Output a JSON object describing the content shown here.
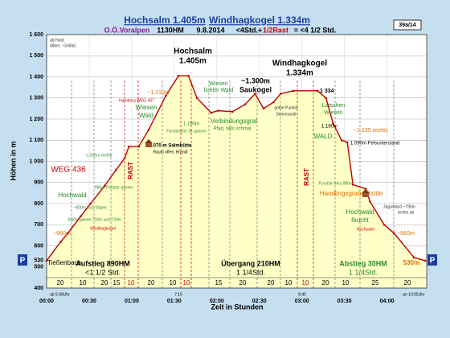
{
  "chart_data": {
    "type": "elevation-profile",
    "title_parts": [
      "Hochsalm 1.405m",
      "Windhagkogel 1.334m"
    ],
    "subtitle_parts": [
      {
        "text": "O.Ö.Voralpen",
        "color": "#8b1a8b"
      },
      {
        "text": "1130HM",
        "color": "#000000"
      },
      {
        "text": "9.8.2014",
        "color": "#000000"
      },
      {
        "text": "<4Std.+",
        "color": "#000000"
      },
      {
        "text": "1/2Rast",
        "color": "#d00000"
      },
      {
        "text": "= <4 1/2 Std.",
        "color": "#000000"
      }
    ],
    "tag": "39a/14",
    "xlabel": "Zeit in Stunden",
    "ylabel": "Höhen in m",
    "x": [
      0,
      10,
      15,
      24,
      31,
      41,
      49,
      55,
      58,
      65,
      72,
      84,
      93,
      100,
      106,
      116,
      121,
      131,
      140,
      147,
      153,
      160,
      165,
      174,
      191,
      197,
      202,
      208,
      212,
      216,
      225,
      228,
      238,
      245,
      259,
      267
    ],
    "values": [
      530,
      620,
      660,
      740,
      800,
      885,
      960,
      1015,
      1070,
      1070,
      1150,
      1310,
      1405,
      1405,
      1300,
      1230,
      1240,
      1235,
      1270,
      1320,
      1250,
      1280,
      1320,
      1334,
      1334,
      1300,
      1180,
      1100,
      1090,
      890,
      870,
      810,
      700,
      660,
      545,
      530
    ],
    "color": "#c00000",
    "fill": "#ffffc8",
    "xlim": [
      0,
      268
    ],
    "ylim": [
      400,
      1600
    ],
    "xticks": [
      {
        "value": 0,
        "label": "00:00"
      },
      {
        "value": 30,
        "label": "00:30"
      },
      {
        "value": 60,
        "label": "01:00"
      },
      {
        "value": 90,
        "label": "01:30"
      },
      {
        "value": 120,
        "label": "02:00"
      },
      {
        "value": 150,
        "label": "02:30"
      },
      {
        "value": 180,
        "label": "03:00"
      },
      {
        "value": 210,
        "label": "03:30"
      },
      {
        "value": 240,
        "label": "04:00"
      }
    ],
    "yticks": [
      400,
      500,
      530,
      600,
      700,
      800,
      900,
      {
        "value": 1000,
        "label": "1 000"
      },
      {
        "value": 1100,
        "label": "1 100"
      },
      {
        "value": 1200,
        "label": "1 200"
      },
      {
        "value": 1300,
        "label": "1 300"
      },
      {
        "value": 1400,
        "label": "1 400"
      },
      {
        "value": 1500,
        "label": "1 500"
      },
      {
        "value": 1600,
        "label": "1 600"
      }
    ],
    "grid": true,
    "durations": [
      20,
      10,
      20,
      15,
      10,
      20,
      10,
      10,
      15,
      20,
      20,
      10,
      10,
      20,
      10,
      25,
      20
    ],
    "duration_colors": [
      "#000000",
      "#000000",
      "#000000",
      "#000000",
      "#d00000",
      "#000000",
      "#000000",
      "#d00000",
      "#000000",
      "#000000",
      "#000000",
      "#000000",
      "#d00000",
      "#000000",
      "#000000",
      "#000000",
      "#000000"
    ],
    "parking_labels": [
      "P",
      "P"
    ],
    "annotations": [
      {
        "text": "ab Haid:",
        "color": "#333333"
      },
      {
        "text": "48km; ~3/45td.",
        "color": "#333333"
      },
      {
        "text": "Hochsalm",
        "color": "#000000"
      },
      {
        "text": "1.405m",
        "color": "#000000"
      },
      {
        "text": "Windhagkogel",
        "color": "#000000"
      },
      {
        "text": "1.334m",
        "color": "#000000"
      },
      {
        "text": "~1.300m",
        "color": "#000000"
      },
      {
        "text": "Saukogel",
        "color": "#000000"
      },
      {
        "text": "Wiesen",
        "color": "#2a8a2a"
      },
      {
        "text": "lichter Wald",
        "color": "#2a8a2a"
      },
      {
        "text": "~1.210m",
        "color": "#e07000"
      },
      {
        "text": "Hamberg WEG 437",
        "color": "#d00000"
      },
      {
        "text": "Wiesen",
        "color": "#2a8a2a"
      },
      {
        "text": "Wald",
        "color": "#2a8a2a"
      },
      {
        "text": "1.190m",
        "color": "#2a8a2a"
      },
      {
        "text": "Forststraße 3x queren",
        "color": "#2a8a2a"
      },
      {
        "text": "Verbindungsgrat",
        "color": "#2a8a2a"
      },
      {
        "text": "Pfad, teils schmal",
        "color": "#2a8a2a"
      },
      {
        "text": "gelbe Punkte",
        "color": "#333333"
      },
      {
        "text": "Steinmandl",
        "color": "#333333"
      },
      {
        "text": "1 334",
        "color": "#000000"
      },
      {
        "text": "Latschen",
        "color": "#2a8a2a"
      },
      {
        "text": "Wiesen",
        "color": "#2a8a2a"
      },
      {
        "text": "1.180m",
        "color": "#000000"
      },
      {
        "text": "~1.135 rechts",
        "color": "#e07000"
      },
      {
        "text": "1.090m Felsunterstand",
        "color": "#000000"
      },
      {
        "text": "WALD",
        "color": "#2a8a2a"
      },
      {
        "text": "1.070 m Salmhütte",
        "color": "#000000"
      },
      {
        "text": "Raum offen, Brandl",
        "color": "#000000"
      },
      {
        "text": "RAST",
        "color": "#d00000"
      },
      {
        "text": "RAST",
        "color": "#d00000"
      },
      {
        "text": "~1.015m rechts",
        "color": "#2a8a2a"
      },
      {
        "text": "WEG 436",
        "color": "#d00000"
      },
      {
        "text": "Hochwald",
        "color": "#2a8a2a"
      },
      {
        "text": "885m Forststr queren",
        "color": "#2a8a2a"
      },
      {
        "text": "~800m kurz folgen",
        "color": "#2a8a2a"
      },
      {
        "text": "Bach queren 715m und 730m",
        "color": "#2a8a2a"
      },
      {
        "text": "Windhagkogel",
        "color": "#d00000"
      },
      {
        "text": "~660m",
        "color": "#e07000"
      },
      {
        "text": "Forststr links 880m",
        "color": "#2a8a2a"
      },
      {
        "text": "Handlingsgrabenhütte",
        "color": "#e07000"
      },
      {
        "text": "Jagastand ~790m",
        "color": "#333333"
      },
      {
        "text": "rechts ab",
        "color": "#333333"
      },
      {
        "text": "Hochwald",
        "color": "#2a8a2a"
      },
      {
        "text": "feucht",
        "color": "#2a8a2a"
      },
      {
        "text": "Hochsalm",
        "color": "#d00000"
      },
      {
        "text": "~660m",
        "color": "#e07000"
      },
      {
        "text": "Tießenbach",
        "color": "#000000"
      },
      {
        "text": "Aufstieg 890HM",
        "color": "#000000"
      },
      {
        "text": "<1 1/2 Std.",
        "color": "#000000"
      },
      {
        "text": "Übergang 210HM",
        "color": "#000000"
      },
      {
        "text": "1 1/4Std.",
        "color": "#000000"
      },
      {
        "text": "Abstieg 30HM",
        "color": "#2a8a2a"
      },
      {
        "text": "1 1/4Std.",
        "color": "#2a8a2a"
      },
      {
        "text": "530m",
        "color": "#e07000"
      },
      {
        "text": "ab 5:40Uhr",
        "color": "#000000"
      },
      {
        "text": "7:15",
        "color": "#000000"
      },
      {
        "text": "8:40",
        "color": "#000000"
      },
      {
        "text": "an 10:05Uhr",
        "color": "#000000"
      }
    ]
  }
}
